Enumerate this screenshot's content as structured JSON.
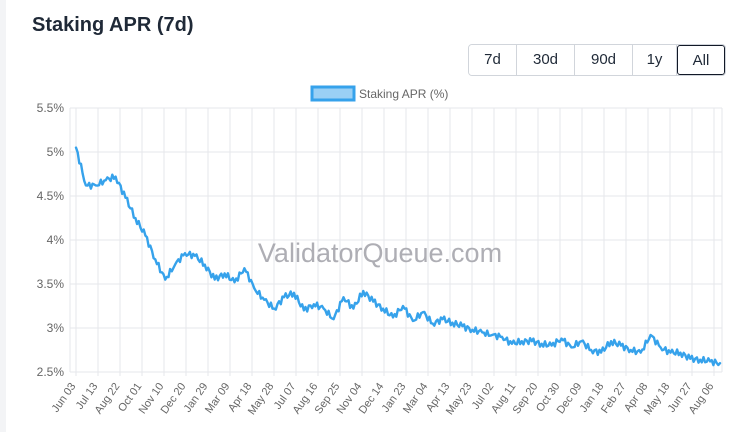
{
  "page": {
    "title": "Staking APR (7d)"
  },
  "range_buttons": [
    {
      "label": "7d",
      "active": false
    },
    {
      "label": "30d",
      "active": false
    },
    {
      "label": "90d",
      "active": false
    },
    {
      "label": "1y",
      "active": false
    },
    {
      "label": "All",
      "active": true
    }
  ],
  "watermark": "ValidatorQueue.com",
  "colors": {
    "line": "#36a2eb",
    "legend_fill": "#9ad0f5",
    "grid": "#e5e7eb",
    "text": "#666666",
    "title": "#1f2937"
  },
  "chart_data": {
    "type": "line",
    "title": "",
    "xlabel": "",
    "ylabel": "",
    "ylim": [
      2.5,
      5.5
    ],
    "yticks": [
      2.5,
      3,
      3.5,
      4,
      4.5,
      5,
      5.5
    ],
    "ytick_labels": [
      "2.5%",
      "3%",
      "3.5%",
      "4%",
      "4.5%",
      "5%",
      "5.5%"
    ],
    "grid": true,
    "legend": "top-center",
    "x_tick_labels": [
      "Jun 03",
      "Jul 13",
      "Aug 22",
      "Oct 01",
      "Nov 10",
      "Dec 20",
      "Jan 29",
      "Mar 09",
      "Apr 18",
      "May 28",
      "Jul 07",
      "Aug 16",
      "Sep 25",
      "Nov 04",
      "Dec 14",
      "Jan 23",
      "Mar 04",
      "Apr 13",
      "May 23",
      "Jul 02",
      "Aug 11",
      "Sep 20",
      "Oct 30",
      "Dec 09",
      "Jan 18",
      "Feb 27",
      "Apr 08",
      "May 18",
      "Jun 27",
      "Aug 06"
    ],
    "series": [
      {
        "name": "Staking APR (%)",
        "x_start": "Jun 03",
        "interval_days": 10,
        "values": [
          5.05,
          4.62,
          4.62,
          4.68,
          4.72,
          4.48,
          4.25,
          4.05,
          3.78,
          3.55,
          3.72,
          3.85,
          3.82,
          3.72,
          3.55,
          3.62,
          3.52,
          3.68,
          3.45,
          3.32,
          3.22,
          3.35,
          3.4,
          3.2,
          3.27,
          3.22,
          3.1,
          3.35,
          3.22,
          3.42,
          3.3,
          3.22,
          3.12,
          3.25,
          3.08,
          3.18,
          3.05,
          3.1,
          3.06,
          3.02,
          2.98,
          2.95,
          2.92,
          2.9,
          2.82,
          2.85,
          2.85,
          2.82,
          2.8,
          2.88,
          2.78,
          2.85,
          2.75,
          2.72,
          2.85,
          2.8,
          2.75,
          2.72,
          2.92,
          2.78,
          2.72,
          2.72,
          2.65,
          2.64,
          2.62,
          2.6
        ]
      }
    ]
  }
}
